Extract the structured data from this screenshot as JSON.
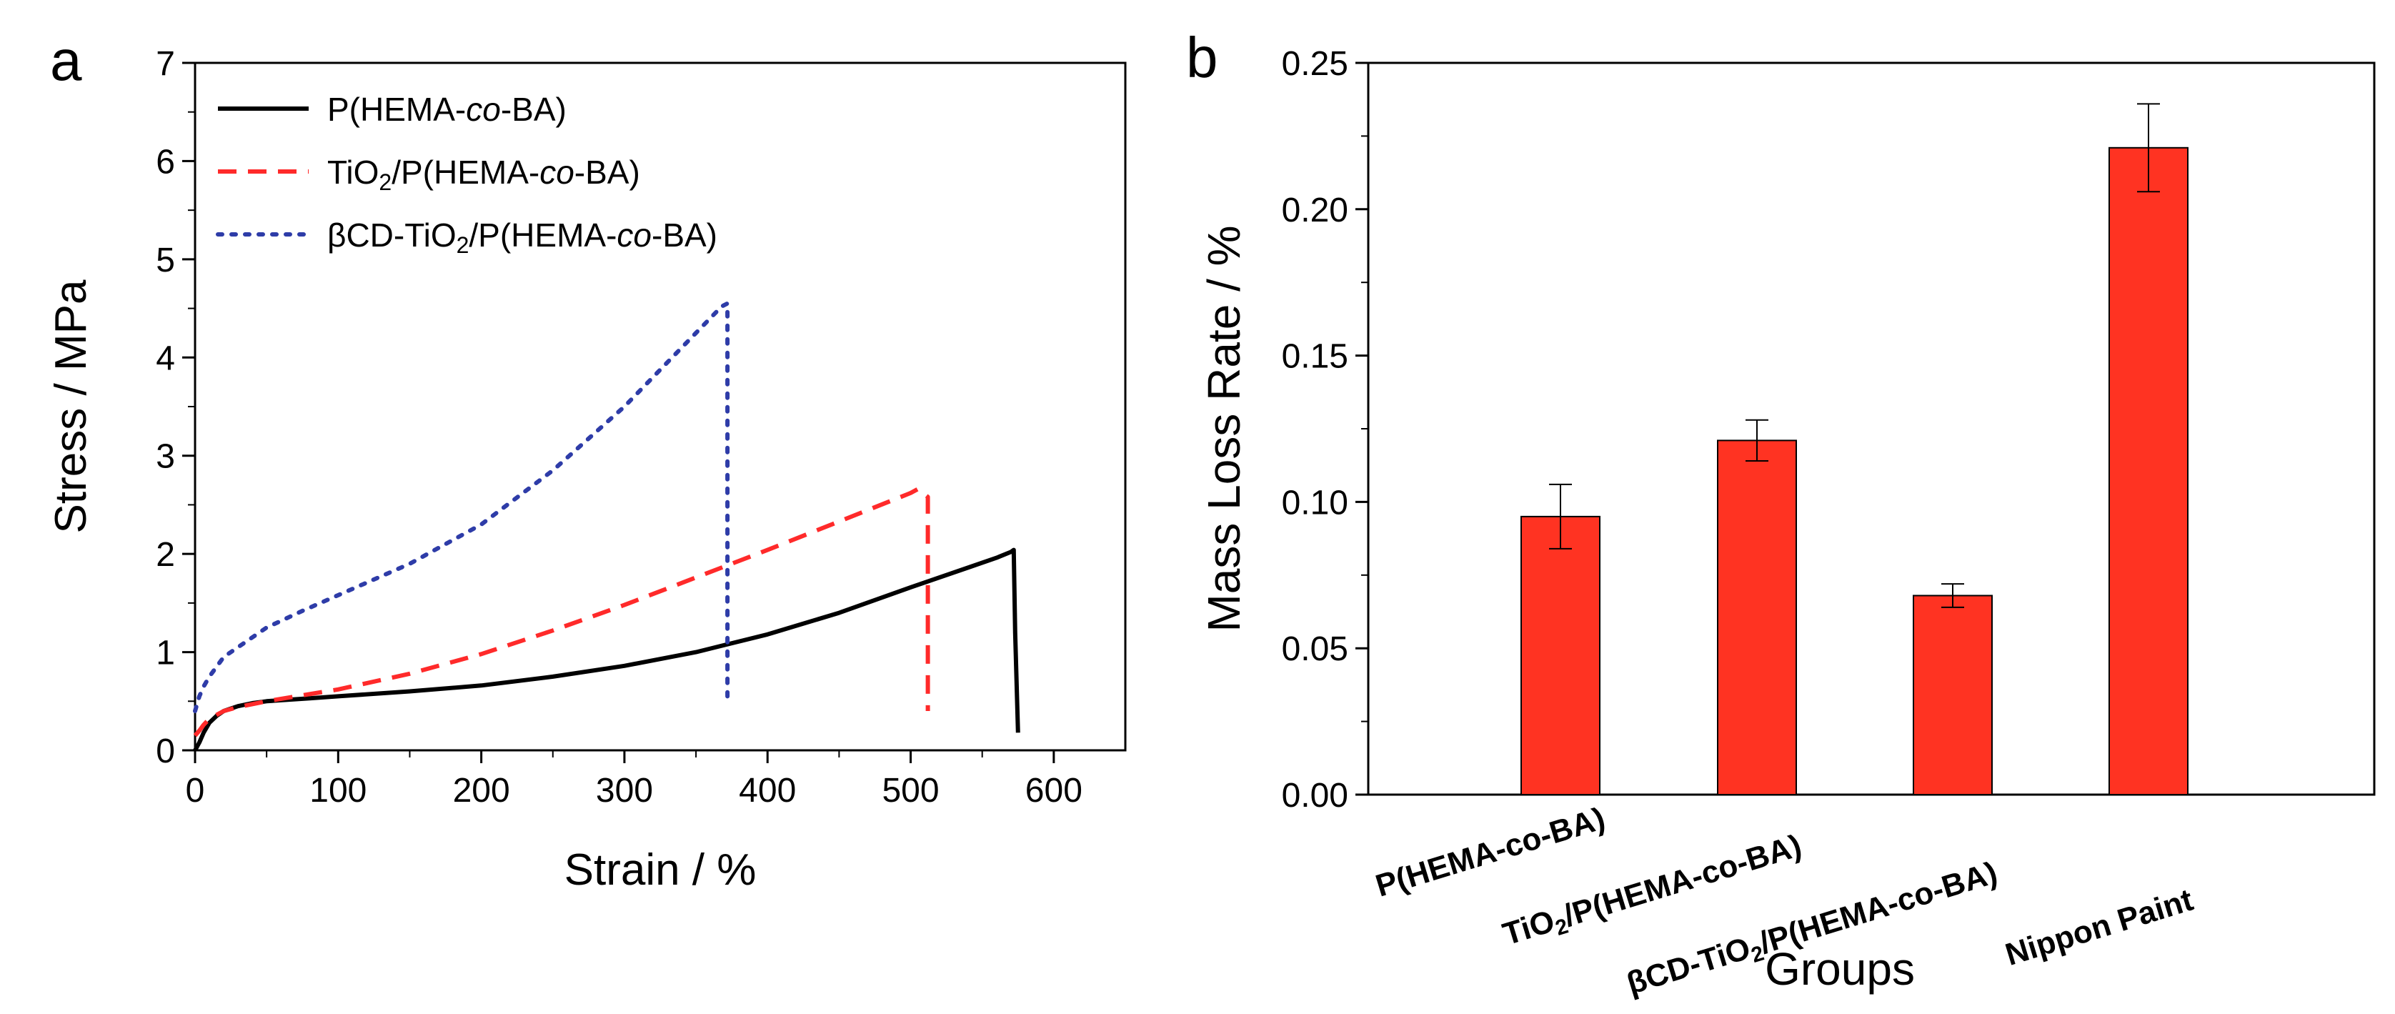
{
  "chart_data": [
    {
      "panel": "a",
      "type": "line",
      "title": "",
      "xlabel": "Strain / %",
      "ylabel": "Stress / MPa",
      "xlim": [
        0,
        650
      ],
      "ylim": [
        0,
        7
      ],
      "xticks": [
        0,
        100,
        200,
        300,
        400,
        500,
        600
      ],
      "yticks": [
        0,
        1,
        2,
        3,
        4,
        5,
        6,
        7
      ],
      "grid": false,
      "legend_position": "top-left",
      "series": [
        {
          "name_parts": [
            "P(HEMA-",
            "co",
            "-BA)"
          ],
          "color": "#000000",
          "style": "solid",
          "x": [
            0,
            3,
            6,
            10,
            15,
            20,
            30,
            40,
            50,
            60,
            80,
            100,
            150,
            200,
            250,
            300,
            350,
            400,
            450,
            500,
            540,
            560,
            570,
            572,
            573,
            575
          ],
          "y": [
            0,
            0.08,
            0.18,
            0.28,
            0.35,
            0.4,
            0.45,
            0.48,
            0.5,
            0.51,
            0.53,
            0.55,
            0.6,
            0.66,
            0.75,
            0.86,
            1.0,
            1.18,
            1.4,
            1.66,
            1.86,
            1.96,
            2.02,
            2.04,
            1.2,
            0.18
          ]
        },
        {
          "name_parts": [
            "TiO",
            "2",
            "/P(HEMA-",
            "co",
            "-BA)"
          ],
          "color": "#ff2a2a",
          "style": "dashed",
          "x": [
            0,
            3,
            6,
            10,
            15,
            20,
            30,
            50,
            75,
            100,
            150,
            200,
            250,
            300,
            350,
            400,
            450,
            500,
            505,
            512,
            512,
            512
          ],
          "y": [
            0.15,
            0.2,
            0.26,
            0.32,
            0.36,
            0.4,
            0.44,
            0.5,
            0.56,
            0.62,
            0.78,
            0.98,
            1.22,
            1.48,
            1.76,
            2.04,
            2.33,
            2.62,
            2.66,
            2.58,
            1.4,
            0.4
          ]
        },
        {
          "name_parts": [
            "βCD-TiO",
            "2",
            "/P(HEMA-",
            "co",
            "-BA)"
          ],
          "color": "#2e3ca8",
          "style": "dotted",
          "x": [
            0,
            3,
            6,
            10,
            15,
            20,
            30,
            50,
            75,
            100,
            150,
            200,
            250,
            300,
            350,
            368,
            372,
            372,
            372
          ],
          "y": [
            0.4,
            0.55,
            0.65,
            0.75,
            0.85,
            0.95,
            1.05,
            1.25,
            1.42,
            1.58,
            1.9,
            2.3,
            2.85,
            3.5,
            4.25,
            4.52,
            4.55,
            2.5,
            0.55
          ]
        }
      ]
    },
    {
      "panel": "b",
      "type": "bar",
      "title": "",
      "xlabel": "Groups",
      "ylabel": "Mass Loss Rate / %",
      "ylim": [
        0,
        0.25
      ],
      "yticks": [
        0.0,
        0.05,
        0.1,
        0.15,
        0.2,
        0.25
      ],
      "ytick_labels": [
        "0.00",
        "0.05",
        "0.10",
        "0.15",
        "0.20",
        "0.25"
      ],
      "grid": false,
      "bar_color": "#ff3322",
      "categories": [
        [
          "P(HEMA-co-BA)"
        ],
        [
          "TiO",
          "2",
          "/P(HEMA-co-BA)"
        ],
        [
          "βCD-TiO",
          "2",
          "/P(HEMA-co-BA)"
        ],
        [
          "Nippon Paint"
        ]
      ],
      "values": [
        0.095,
        0.121,
        0.068,
        0.221
      ],
      "errors": [
        0.011,
        0.007,
        0.004,
        0.015
      ]
    }
  ],
  "panel_labels": [
    "a",
    "b"
  ]
}
